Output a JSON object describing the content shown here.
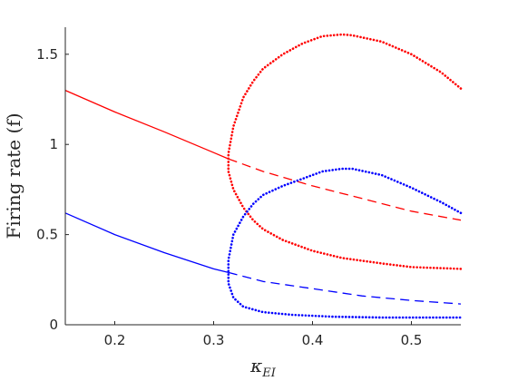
{
  "chart_data": {
    "type": "line",
    "title": "",
    "xlabel": "κ",
    "xlabel_subscript": "EI",
    "ylabel": "Firing rate (f)",
    "xlim": [
      0.15,
      0.55
    ],
    "ylim": [
      0,
      1.65
    ],
    "xticks": [
      0.2,
      0.3,
      0.4,
      0.5
    ],
    "xtick_labels": [
      "0.2",
      "0.3",
      "0.4",
      "0.5"
    ],
    "yticks": [
      0,
      0.5,
      1,
      1.5
    ],
    "ytick_labels": [
      "0",
      "0.5",
      "1",
      "1.5"
    ],
    "grid": false,
    "legend": "none",
    "series": [
      {
        "color": "#ff0000",
        "style": "solid",
        "x": [
          0.15,
          0.2,
          0.25,
          0.3,
          0.315
        ],
        "y": [
          1.3,
          1.18,
          1.07,
          0.955,
          0.92
        ]
      },
      {
        "color": "#ff0000",
        "style": "dashed",
        "x": [
          0.315,
          0.35,
          0.4,
          0.45,
          0.5,
          0.55
        ],
        "y": [
          0.92,
          0.85,
          0.77,
          0.7,
          0.63,
          0.58
        ]
      },
      {
        "color": "#0000ff",
        "style": "solid",
        "x": [
          0.15,
          0.2,
          0.25,
          0.3,
          0.315
        ],
        "y": [
          0.62,
          0.5,
          0.4,
          0.31,
          0.29
        ]
      },
      {
        "color": "#0000ff",
        "style": "dashed",
        "x": [
          0.315,
          0.35,
          0.4,
          0.45,
          0.5,
          0.55
        ],
        "y": [
          0.29,
          0.24,
          0.2,
          0.16,
          0.135,
          0.115
        ]
      },
      {
        "color": "#ff0000",
        "style": "dotted",
        "x": [
          0.55,
          0.53,
          0.5,
          0.47,
          0.44,
          0.43,
          0.41,
          0.39,
          0.37,
          0.35,
          0.34,
          0.33,
          0.32,
          0.315,
          0.315,
          0.32,
          0.33,
          0.34,
          0.35,
          0.37,
          0.4,
          0.43,
          0.47,
          0.5,
          0.55
        ],
        "y": [
          1.31,
          1.4,
          1.5,
          1.57,
          1.605,
          1.61,
          1.6,
          1.56,
          1.5,
          1.42,
          1.35,
          1.26,
          1.1,
          0.95,
          0.85,
          0.75,
          0.65,
          0.58,
          0.53,
          0.47,
          0.41,
          0.37,
          0.34,
          0.32,
          0.31
        ]
      },
      {
        "color": "#0000ff",
        "style": "dotted",
        "x": [
          0.55,
          0.53,
          0.5,
          0.47,
          0.44,
          0.43,
          0.41,
          0.39,
          0.37,
          0.35,
          0.34,
          0.33,
          0.32,
          0.315,
          0.315,
          0.32,
          0.33,
          0.35,
          0.38,
          0.42,
          0.47,
          0.55
        ],
        "y": [
          0.62,
          0.68,
          0.76,
          0.83,
          0.865,
          0.865,
          0.85,
          0.81,
          0.77,
          0.72,
          0.67,
          0.6,
          0.5,
          0.36,
          0.23,
          0.15,
          0.1,
          0.07,
          0.055,
          0.045,
          0.04,
          0.04
        ]
      }
    ]
  }
}
